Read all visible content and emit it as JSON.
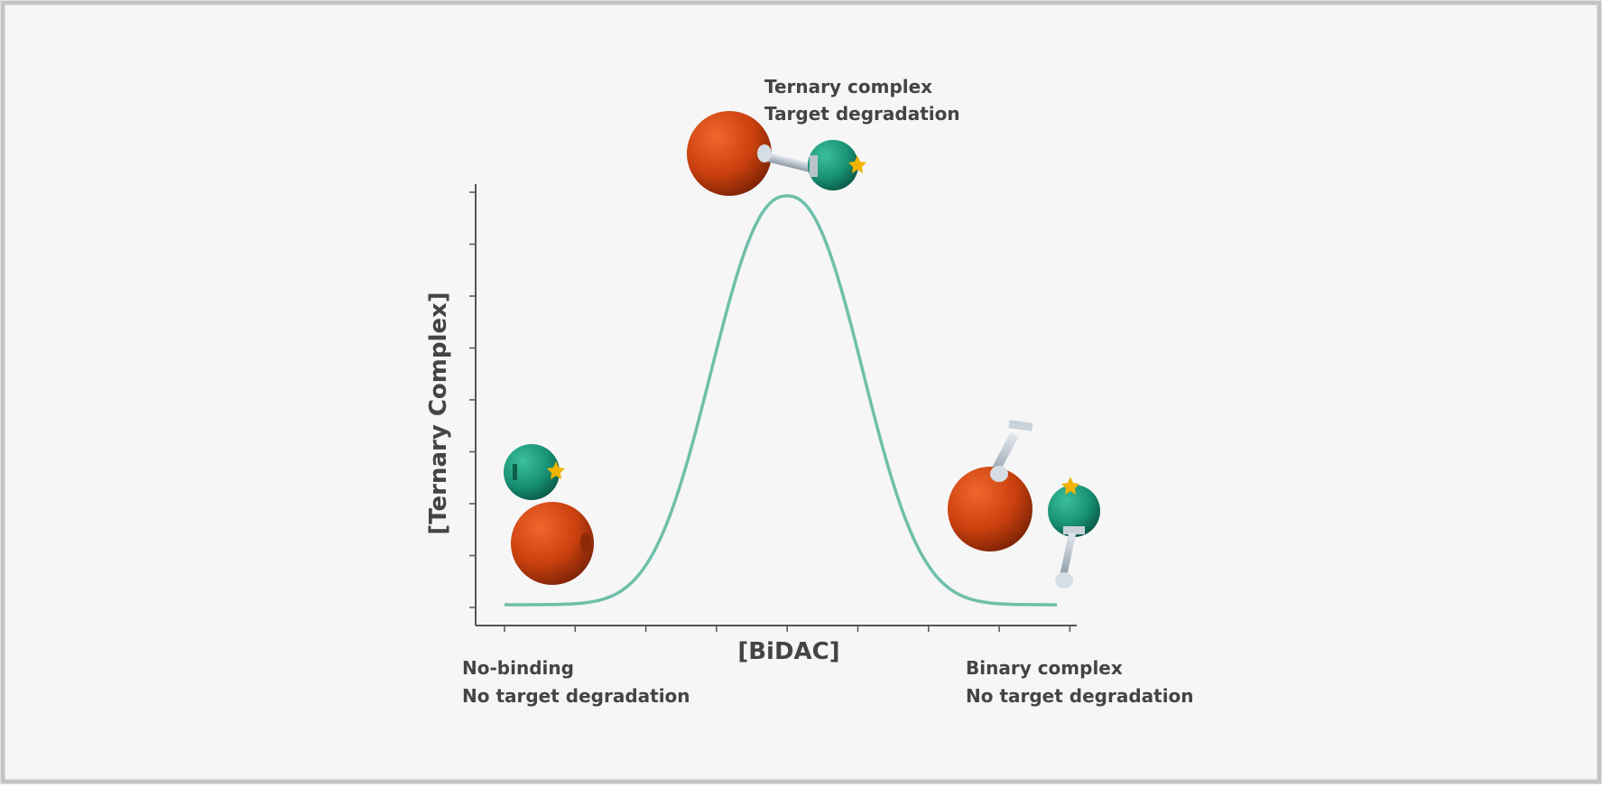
{
  "axes": {
    "y_label": "[Ternary Complex]",
    "x_label": "[BiDAC]"
  },
  "annotations": [
    {
      "lines": [
        "Ternary complex",
        "Target degradation"
      ]
    },
    {
      "lines": [
        "No-binding",
        "No target degradation"
      ]
    },
    {
      "lines": [
        "Binary complex",
        "No target degradation"
      ]
    }
  ]
}
